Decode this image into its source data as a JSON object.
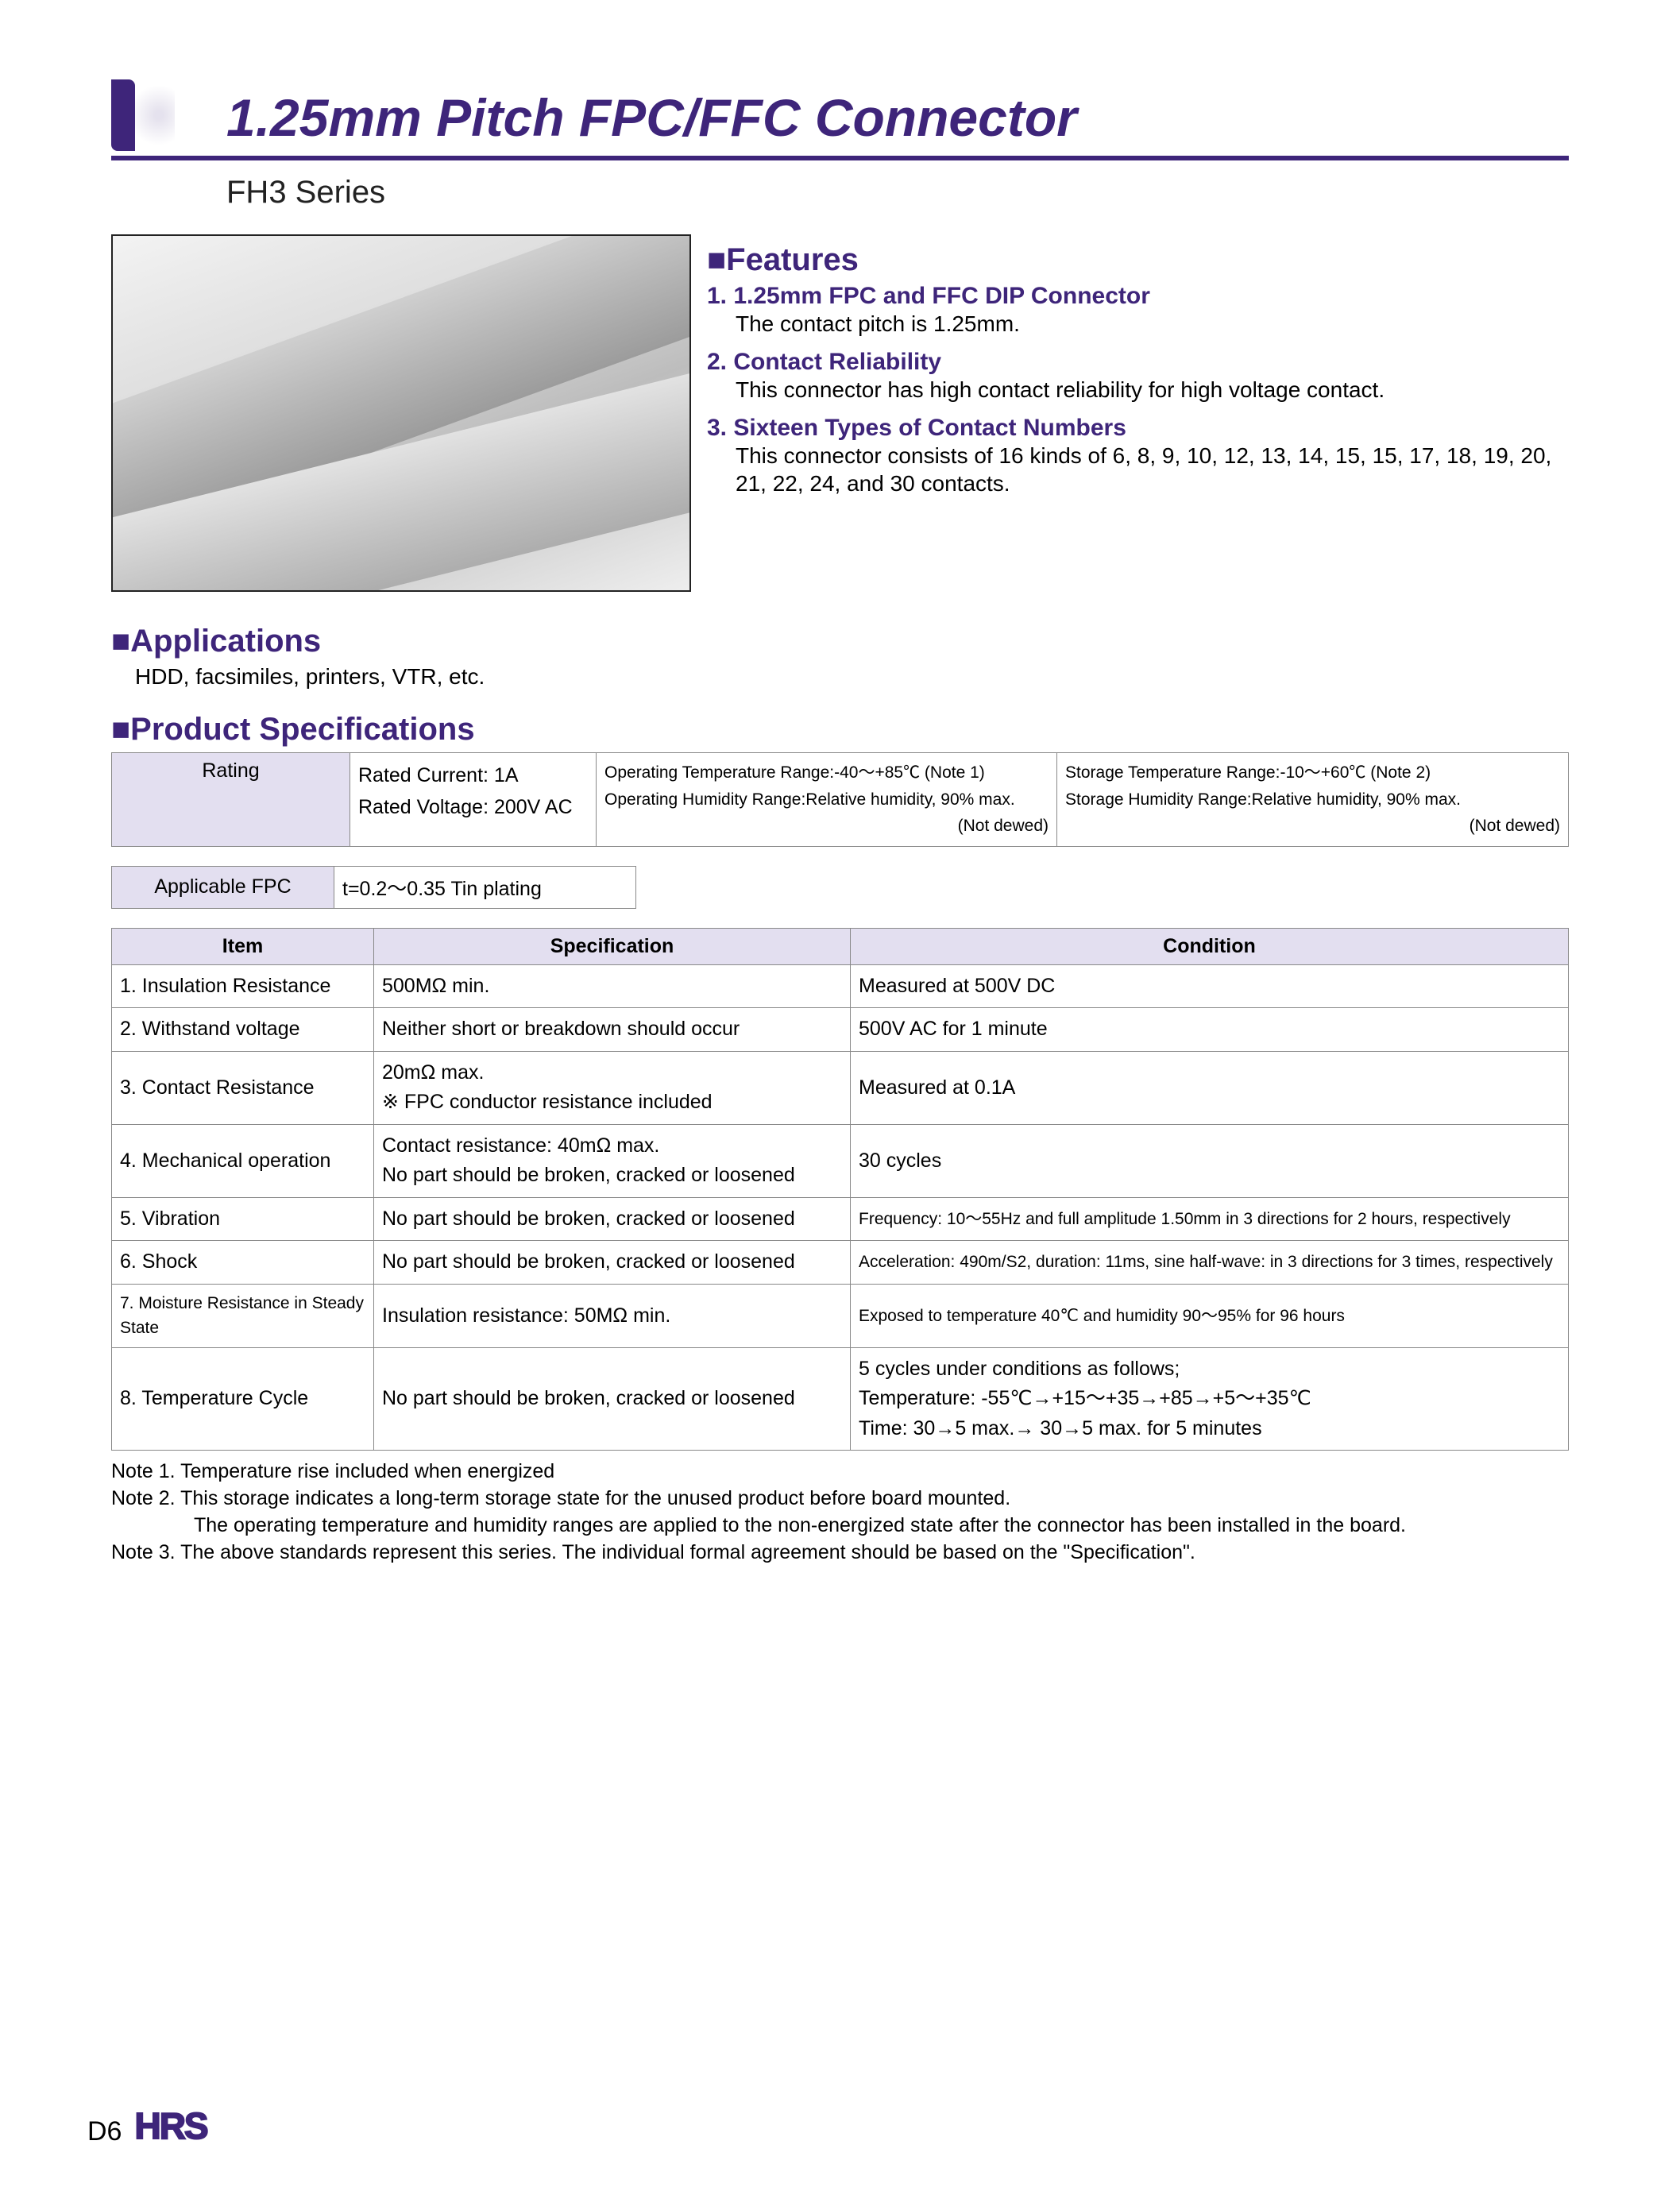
{
  "colors": {
    "brand": "#3e257a",
    "header_bg": "#e3dff0",
    "border": "#888888",
    "text": "#000000",
    "bg": "#ffffff"
  },
  "typography": {
    "title_pt": 66,
    "subtitle_pt": 40,
    "section_pt": 40,
    "body_pt": 28,
    "table_pt": 25,
    "small_pt": 21
  },
  "title": "1.25mm Pitch FPC/FFC Connector",
  "subtitle": "FH3 Series",
  "features": {
    "heading": "■Features",
    "items": [
      {
        "head": "1. 1.25mm FPC and FFC DIP Connector",
        "body": "The contact pitch is 1.25mm."
      },
      {
        "head": "2. Contact Reliability",
        "body": "This connector has high contact reliability for high voltage contact."
      },
      {
        "head": "3. Sixteen Types of Contact Numbers",
        "body": "This connector consists of 16 kinds of 6, 8, 9, 10, 12, 13, 14, 15, 15, 17, 18, 19, 20, 21, 22, 24, and 30 contacts."
      }
    ]
  },
  "applications": {
    "heading": "■Applications",
    "body": "HDD, facsimiles, printers, VTR, etc."
  },
  "product_spec_heading": "■Product Specifications",
  "rating_table": {
    "col_widths": [
      "300px",
      "310px",
      "580px",
      "auto"
    ],
    "r1c1": "Rating",
    "r1c2": "Rated Current: 1A\nRated Voltage: 200V AC",
    "r1c3": "Operating Temperature Range:-40～+85℃ (Note 1)\nOperating Humidity Range:Relative humidity, 90% max.\n(Not dewed)",
    "r1c4": "Storage Temperature Range:-10～+60℃ (Note 2)\nStorage Humidity Range:Relative humidity, 90% max.\n(Not dewed)"
  },
  "fpc_table": {
    "label": "Applicable FPC",
    "value": "t=0.2～0.35  Tin plating"
  },
  "spec_table": {
    "headers": [
      "Item",
      "Specification",
      "Condition"
    ],
    "rows": [
      [
        "1. Insulation Resistance",
        "500MΩ min.",
        "Measured at 500V DC"
      ],
      [
        "2. Withstand voltage",
        "Neither short or breakdown should occur",
        "500V AC for 1 minute"
      ],
      [
        "3. Contact Resistance",
        "20mΩ max.\n※ FPC conductor resistance included",
        "Measured at 0.1A"
      ],
      [
        "4. Mechanical operation",
        "Contact resistance: 40mΩ max.\nNo part should be broken, cracked or loosened",
        "30 cycles"
      ],
      [
        "5. Vibration",
        "No part should be broken, cracked or loosened",
        "Frequency: 10～55Hz and full amplitude 1.50mm in 3 directions for 2 hours, respectively"
      ],
      [
        "6. Shock",
        "No part should be broken, cracked or loosened",
        "Acceleration: 490m/S2, duration: 11ms, sine half-wave: in 3 directions for 3 times, respectively"
      ],
      [
        "7. Moisture Resistance in Steady State",
        "Insulation resistance: 50MΩ min.",
        "Exposed to temperature 40℃ and humidity 90～95% for 96 hours"
      ],
      [
        "8. Temperature Cycle",
        "No part should be broken, cracked or loosened",
        "5 cycles under conditions as follows;\nTemperature: -55℃→+15～+35→+85→+5～+35℃\nTime: 30→5 max.→ 30→5 max. for 5 minutes"
      ]
    ],
    "small_rows": [
      4,
      5,
      6
    ],
    "small_item_rows": [
      6
    ]
  },
  "notes": [
    "Note 1. Temperature rise included when energized",
    "Note 2. This storage indicates a long-term storage state for the unused product before board mounted.",
    "The operating temperature and humidity ranges are applied to the non-energized state after the connector has been installed in the board.",
    "Note 3. The above standards represent this series. The individual formal agreement should be based on the \"Specification\"."
  ],
  "notes_indent": [
    false,
    false,
    true,
    false
  ],
  "footer": {
    "page": "D6",
    "logo": "HRS"
  }
}
